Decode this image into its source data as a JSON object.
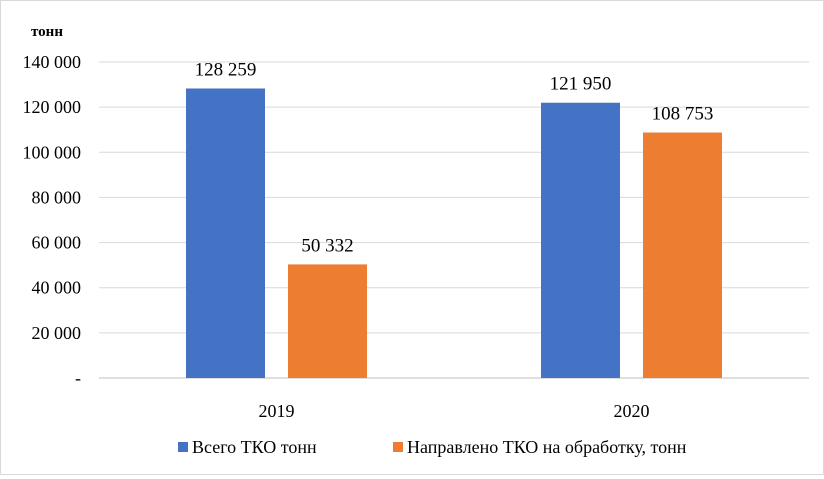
{
  "chart_data": {
    "type": "bar",
    "title": "",
    "ylabel": "тонн",
    "xlabel": "",
    "categories": [
      "2019",
      "2020"
    ],
    "series": [
      {
        "name": "Всего ТКО тонн",
        "color": "#4472C4",
        "values": [
          128259,
          121950
        ],
        "labels": [
          "128 259",
          "121 950"
        ]
      },
      {
        "name": "Направлено ТКО на обработку, тонн",
        "color": "#ED7D31",
        "values": [
          50332,
          108753
        ],
        "labels": [
          "50 332",
          "108 753"
        ]
      }
    ],
    "ylim": [
      0,
      140000
    ],
    "yticks": [
      {
        "value": 0,
        "label": "-"
      },
      {
        "value": 20000,
        "label": "20 000"
      },
      {
        "value": 40000,
        "label": "40 000"
      },
      {
        "value": 60000,
        "label": "60 000"
      },
      {
        "value": 80000,
        "label": "80 000"
      },
      {
        "value": 100000,
        "label": "100 000"
      },
      {
        "value": 120000,
        "label": "120 000"
      },
      {
        "value": 140000,
        "label": "140 000"
      }
    ],
    "grid": true,
    "legend_position": "bottom"
  }
}
